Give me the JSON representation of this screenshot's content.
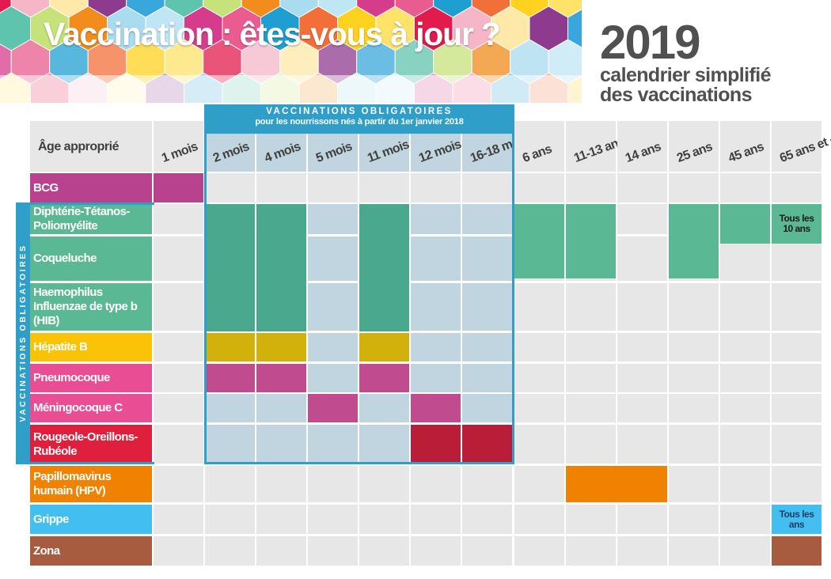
{
  "header": {
    "title": "Vaccination : êtes-vous à jour ?",
    "year": "2019",
    "subtitle_line1": "calendrier simplifié",
    "subtitle_line2": "des vaccinations"
  },
  "table": {
    "age_header": "Âge approprié",
    "ages": [
      "1 mois",
      "2 mois",
      "4 mois",
      "5 mois",
      "11 mois",
      "12 mois",
      "16-18 mois",
      "6 ans",
      "11-13 ans",
      "14 ans",
      "25 ans",
      "45 ans",
      "65 ans et +"
    ],
    "mandatory_header_line1": "VACCINATIONS OBLIGATOIRES",
    "mandatory_header_line2": "pour les nourrissons nés à partir du 1er janvier 2018",
    "side_label": "VACCINATIONS OBLIGATOIRES",
    "vaccines": [
      {
        "name": "BCG",
        "color": "#b8428e"
      },
      {
        "name": "Diphtérie-Tétanos-Poliomyélite",
        "color": "#5bb894"
      },
      {
        "name": "Coqueluche",
        "color": "#5bb894"
      },
      {
        "name": "Haemophilus Influenzae de type b (HIB)",
        "color": "#5bb894"
      },
      {
        "name": "Hépatite B",
        "color": "#fac307"
      },
      {
        "name": "Pneumocoque",
        "color": "#e94d93"
      },
      {
        "name": "Méningocoque C",
        "color": "#e94d93"
      },
      {
        "name": "Rougeole-Oreillons-Rubéole",
        "color": "#e01f3d"
      },
      {
        "name": "Papillomavirus humain (HPV)",
        "color": "#f08101"
      },
      {
        "name": "Grippe",
        "color": "#42bff0"
      },
      {
        "name": "Zona",
        "color": "#a75b3f"
      }
    ],
    "notes": {
      "dtp_65": "Tous les 10 ans",
      "grippe_65": "Tous les ans"
    }
  },
  "colors": {
    "mandatory_blue": "#2f9ec9",
    "grid_gray": "#e7e7e8",
    "grid_blue": "#c0d5df",
    "dtp_dark": "#4aa88e",
    "dtp_light": "#5bb894",
    "hepb": "#d2b10d",
    "pneumo": "#c04b8e",
    "menc": "#c04b8e",
    "ror": "#b91d38",
    "hpv": "#f08101",
    "grippe": "#42bff0",
    "zona": "#a75b3f",
    "bcg": "#b8428e"
  }
}
